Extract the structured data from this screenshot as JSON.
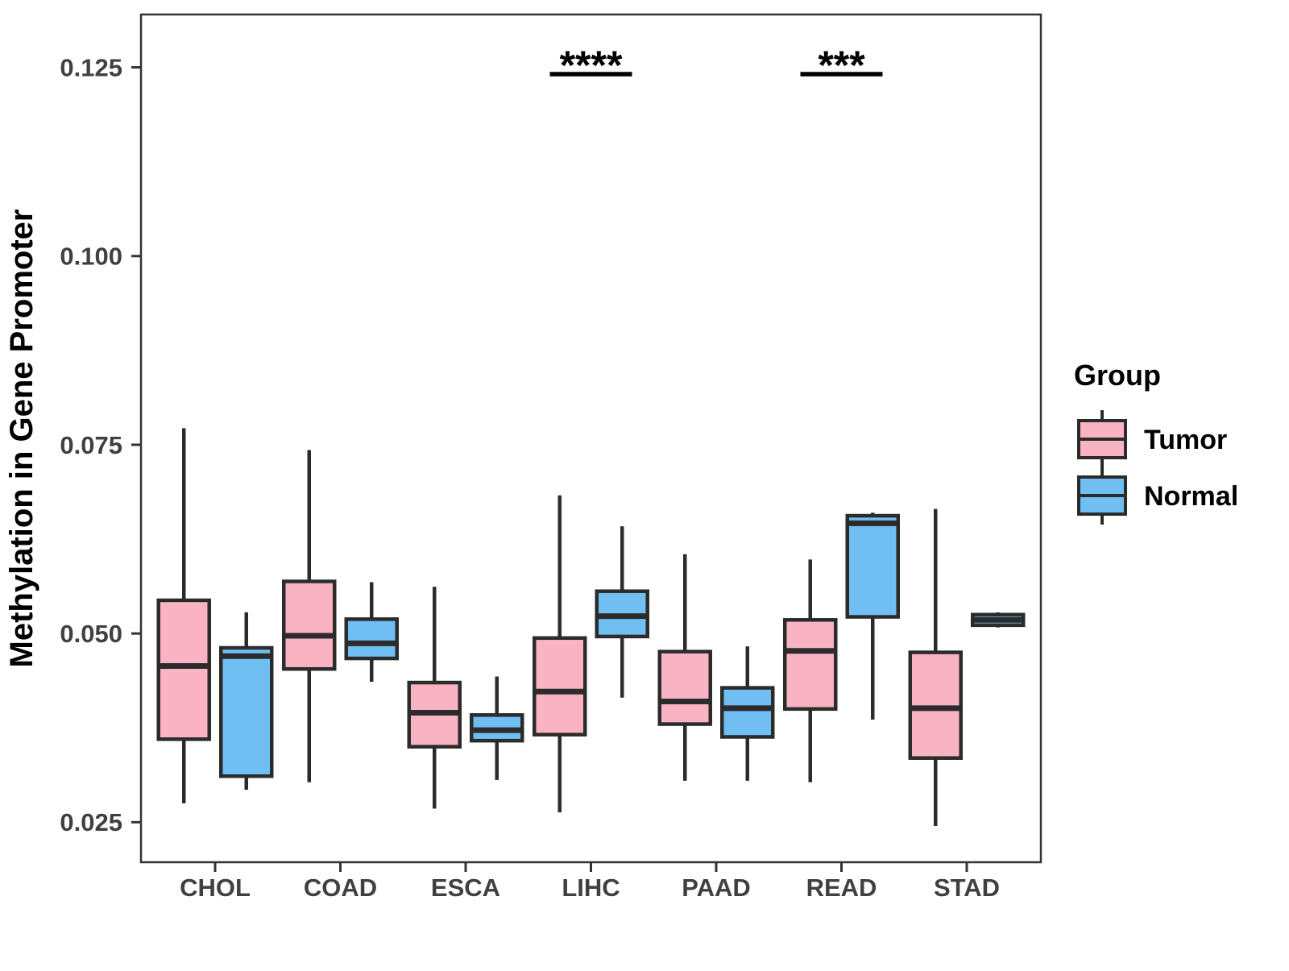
{
  "figure": {
    "y_axis_title": "Methylation in Gene Promoter",
    "x_axis_title": ""
  },
  "legend": {
    "title": "Group",
    "items": [
      {
        "label": "Tumor",
        "color": "#F9B3C2"
      },
      {
        "label": "Normal",
        "color": "#70BEF2"
      }
    ]
  },
  "style_colors": {
    "box_stroke": "#2B2B2B",
    "panel_border": "#333333",
    "tick_text": "#404040",
    "title_text": "#000000"
  },
  "chart_data": {
    "type": "boxplot",
    "title": "",
    "xlabel": "",
    "ylabel": "Methylation in Gene Promoter",
    "categories": [
      "CHOL",
      "COAD",
      "ESCA",
      "LIHC",
      "PAAD",
      "READ",
      "STAD"
    ],
    "groups": [
      "Tumor",
      "Normal"
    ],
    "group_colors": {
      "Tumor": "#F9B3C2",
      "Normal": "#70BEF2"
    },
    "ylim": [
      0.0197,
      0.132
    ],
    "yticks": [
      0.025,
      0.05,
      0.075,
      0.1,
      0.125
    ],
    "ytick_labels": [
      "0.025",
      "0.050",
      "0.075",
      "0.100",
      "0.125"
    ],
    "grid": "off",
    "legend_position": "right",
    "series": [
      {
        "name": "Tumor",
        "stats": [
          {
            "category": "CHOL",
            "min": 0.0275,
            "q1": 0.036,
            "median": 0.0457,
            "q3": 0.0544,
            "max": 0.0772
          },
          {
            "category": "COAD",
            "min": 0.0303,
            "q1": 0.0453,
            "median": 0.0497,
            "q3": 0.0569,
            "max": 0.0743
          },
          {
            "category": "ESCA",
            "min": 0.0268,
            "q1": 0.035,
            "median": 0.0395,
            "q3": 0.0435,
            "max": 0.0562
          },
          {
            "category": "LIHC",
            "min": 0.0263,
            "q1": 0.0366,
            "median": 0.0423,
            "q3": 0.0494,
            "max": 0.0683
          },
          {
            "category": "PAAD",
            "min": 0.0305,
            "q1": 0.038,
            "median": 0.041,
            "q3": 0.0476,
            "max": 0.0605
          },
          {
            "category": "READ",
            "min": 0.0303,
            "q1": 0.04,
            "median": 0.0477,
            "q3": 0.0518,
            "max": 0.0598
          },
          {
            "category": "STAD",
            "min": 0.0245,
            "q1": 0.0335,
            "median": 0.0401,
            "q3": 0.0475,
            "max": 0.0665
          }
        ]
      },
      {
        "name": "Normal",
        "stats": [
          {
            "category": "CHOL",
            "min": 0.0293,
            "q1": 0.0311,
            "median": 0.047,
            "q3": 0.0481,
            "max": 0.0528
          },
          {
            "category": "COAD",
            "min": 0.0436,
            "q1": 0.0467,
            "median": 0.0487,
            "q3": 0.0519,
            "max": 0.0568
          },
          {
            "category": "ESCA",
            "min": 0.0306,
            "q1": 0.0358,
            "median": 0.0372,
            "q3": 0.0392,
            "max": 0.0443
          },
          {
            "category": "LIHC",
            "min": 0.0415,
            "q1": 0.0496,
            "median": 0.0523,
            "q3": 0.0556,
            "max": 0.0642
          },
          {
            "category": "PAAD",
            "min": 0.0305,
            "q1": 0.0363,
            "median": 0.0401,
            "q3": 0.0428,
            "max": 0.0483
          },
          {
            "category": "READ",
            "min": 0.0386,
            "q1": 0.0522,
            "median": 0.0646,
            "q3": 0.0656,
            "max": 0.066
          },
          {
            "category": "STAD",
            "min": 0.0508,
            "q1": 0.0511,
            "median": 0.0518,
            "q3": 0.0525,
            "max": 0.0528
          }
        ]
      }
    ],
    "significance": [
      {
        "category": "LIHC",
        "label": "****"
      },
      {
        "category": "READ",
        "label": "***"
      }
    ]
  }
}
